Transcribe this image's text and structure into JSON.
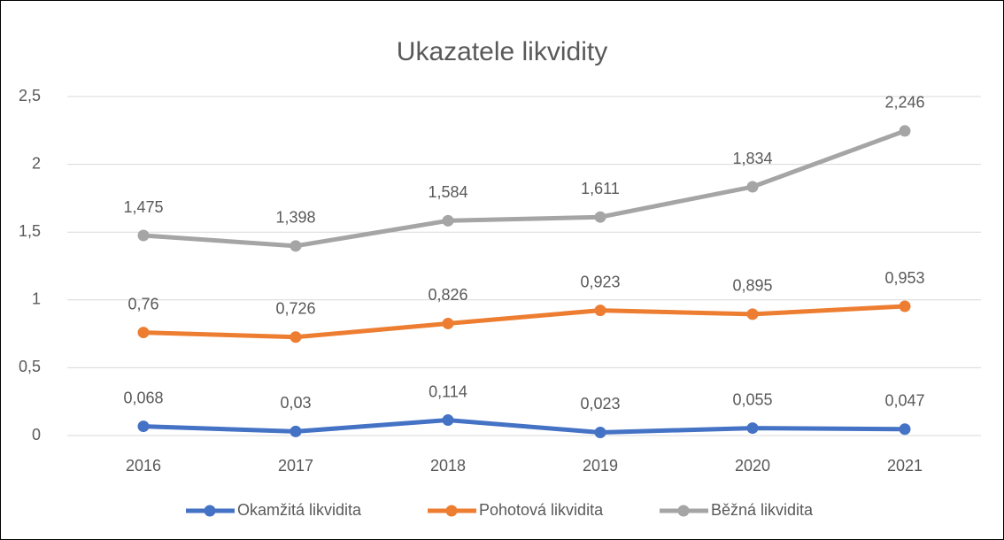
{
  "chart_data": {
    "type": "line",
    "title": "Ukazatele likvidity",
    "categories": [
      "2016",
      "2017",
      "2018",
      "2019",
      "2020",
      "2021"
    ],
    "series": [
      {
        "name": "Okamžitá likvidita",
        "color": "#4472c4",
        "values": [
          0.068,
          0.03,
          0.114,
          0.023,
          0.055,
          0.047
        ],
        "value_labels": [
          "0,068",
          "0,03",
          "0,114",
          "0,023",
          "0,055",
          "0,047"
        ]
      },
      {
        "name": "Pohotová likvidita",
        "color": "#ed7d31",
        "values": [
          0.76,
          0.726,
          0.826,
          0.923,
          0.895,
          0.953
        ],
        "value_labels": [
          "0,76",
          "0,726",
          "0,826",
          "0,923",
          "0,895",
          "0,953"
        ]
      },
      {
        "name": "Běžná likvidita",
        "color": "#a5a5a5",
        "values": [
          1.475,
          1.398,
          1.584,
          1.611,
          1.834,
          2.246
        ],
        "value_labels": [
          "1,475",
          "1,398",
          "1,584",
          "1,611",
          "1,834",
          "2,246"
        ]
      }
    ],
    "ylim": [
      0,
      2.5
    ],
    "yticks": [
      0,
      {
        "value": 0.5,
        "label": "0,5"
      },
      1,
      {
        "value": 1.5,
        "label": "1,5"
      },
      2,
      {
        "value": 2.5,
        "label": "2,5"
      }
    ],
    "grid": true,
    "legend": "bottom"
  }
}
